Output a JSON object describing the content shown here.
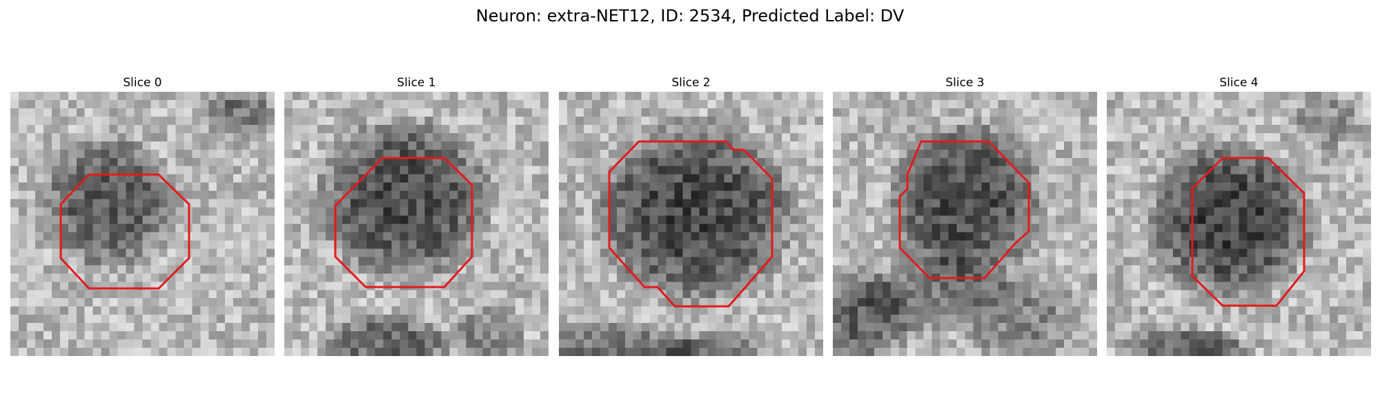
{
  "figure": {
    "title": "Neuron: extra-NET12, ID: 2534, Predicted Label: DV"
  },
  "colors": {
    "contour": "#e31a1c",
    "background": "#ffffff"
  },
  "panels": [
    {
      "title": "Slice 0"
    },
    {
      "title": "Slice 1"
    },
    {
      "title": "Slice 2"
    },
    {
      "title": "Slice 3"
    },
    {
      "title": "Slice 4"
    }
  ]
}
